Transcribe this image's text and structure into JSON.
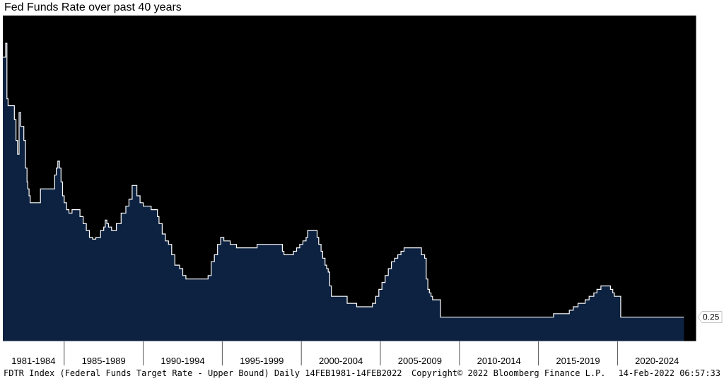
{
  "title": "Fed Funds Rate over past 40 years",
  "footer": {
    "left": "FDTR Index (Federal Funds Target Rate - Upper Bound)  Daily 14FEB1981-14FEB2022",
    "center": "Copyright© 2022 Bloomberg Finance L.P.",
    "right": "14-Feb-2022 06:57:33"
  },
  "colors": {
    "plot_background": "#000000",
    "area_fill": "#0d2240",
    "line": "#ffffff"
  },
  "chart_data": {
    "type": "area",
    "title": "Fed Funds Rate over past 40 years",
    "y_axis_side": "right",
    "ylim": [
      -1.5,
      22
    ],
    "yticks": [
      5,
      10,
      15,
      20
    ],
    "xlim": [
      1981.12,
      2024.99
    ],
    "x_categories": [
      "1981-1984",
      "1985-1989",
      "1990-1994",
      "1995-1999",
      "2000-2004",
      "2005-2009",
      "2010-2014",
      "2015-2019",
      "2020-2024"
    ],
    "x_category_bounds": [
      1981.12,
      1985,
      1990,
      1995,
      2000,
      2005,
      2010,
      2015,
      2020,
      2024.99
    ],
    "last_value_label": "0.25",
    "grid": false,
    "series": [
      {
        "step": true,
        "x": [
          1981.12,
          1981.3,
          1981.38,
          1981.45,
          1981.52,
          1981.7,
          1981.85,
          1981.95,
          1982.05,
          1982.15,
          1982.25,
          1982.45,
          1982.55,
          1982.65,
          1982.7,
          1982.78,
          1982.85,
          1982.95,
          1983.1,
          1983.5,
          1983.8,
          1984.2,
          1984.4,
          1984.5,
          1984.6,
          1984.7,
          1984.8,
          1984.9,
          1985.0,
          1985.15,
          1985.3,
          1985.5,
          1986.0,
          1986.2,
          1986.4,
          1986.6,
          1986.8,
          1987.0,
          1987.3,
          1987.5,
          1987.6,
          1987.7,
          1987.8,
          1988.0,
          1988.3,
          1988.6,
          1988.9,
          1989.1,
          1989.3,
          1989.6,
          1989.8,
          1990.0,
          1990.5,
          1990.9,
          1991.0,
          1991.2,
          1991.4,
          1991.6,
          1991.8,
          1992.0,
          1992.3,
          1992.5,
          1992.7,
          1994.1,
          1994.3,
          1994.5,
          1994.7,
          1994.9,
          1995.1,
          1995.5,
          1995.9,
          1996.0,
          1997.2,
          1998.8,
          1998.9,
          1999.0,
          1999.5,
          1999.7,
          1999.9,
          2000.1,
          2000.3,
          2000.4,
          2001.0,
          2001.1,
          2001.25,
          2001.35,
          2001.5,
          2001.6,
          2001.7,
          2001.8,
          2001.9,
          2002.9,
          2003.5,
          2004.5,
          2004.7,
          2004.9,
          2005.1,
          2005.3,
          2005.5,
          2005.7,
          2005.9,
          2006.1,
          2006.3,
          2006.5,
          2007.6,
          2007.8,
          2007.9,
          2008.0,
          2008.1,
          2008.2,
          2008.3,
          2008.8,
          2008.95,
          2015.95,
          2016.95,
          2017.2,
          2017.5,
          2017.95,
          2018.2,
          2018.5,
          2018.7,
          2018.95,
          2019.55,
          2019.7,
          2019.8,
          2020.2,
          2024.2
        ],
        "values": [
          19.0,
          20.0,
          16.0,
          15.5,
          15.5,
          15.5,
          14.5,
          13.0,
          12.0,
          15.0,
          14.0,
          13.0,
          11.0,
          10.0,
          9.5,
          9.0,
          8.5,
          8.5,
          8.5,
          9.5,
          9.5,
          9.5,
          10.5,
          11.0,
          11.5,
          11.0,
          10.0,
          9.0,
          8.5,
          8.0,
          7.75,
          8.0,
          7.5,
          7.0,
          6.5,
          6.0,
          5.875,
          6.0,
          6.5,
          6.75,
          7.25,
          7.0,
          6.75,
          6.5,
          7.0,
          7.75,
          8.25,
          8.75,
          9.75,
          9.0,
          8.5,
          8.25,
          8.0,
          7.5,
          7.0,
          6.25,
          5.75,
          5.5,
          4.75,
          4.0,
          3.75,
          3.25,
          3.0,
          3.25,
          4.25,
          4.75,
          5.5,
          6.0,
          5.75,
          5.5,
          5.25,
          5.25,
          5.5,
          5.0,
          4.75,
          4.75,
          5.0,
          5.25,
          5.5,
          5.75,
          6.0,
          6.5,
          6.0,
          5.5,
          5.0,
          4.5,
          4.0,
          3.75,
          3.5,
          2.5,
          1.75,
          1.25,
          1.0,
          1.25,
          1.75,
          2.25,
          2.75,
          3.25,
          3.75,
          4.25,
          4.5,
          4.75,
          5.0,
          5.25,
          4.75,
          4.5,
          3.0,
          2.25,
          2.0,
          1.75,
          1.5,
          0.25,
          0.25,
          0.5,
          0.75,
          1.0,
          1.25,
          1.5,
          1.75,
          2.0,
          2.25,
          2.5,
          2.25,
          2.0,
          1.75,
          0.25,
          0.25
        ]
      }
    ]
  }
}
